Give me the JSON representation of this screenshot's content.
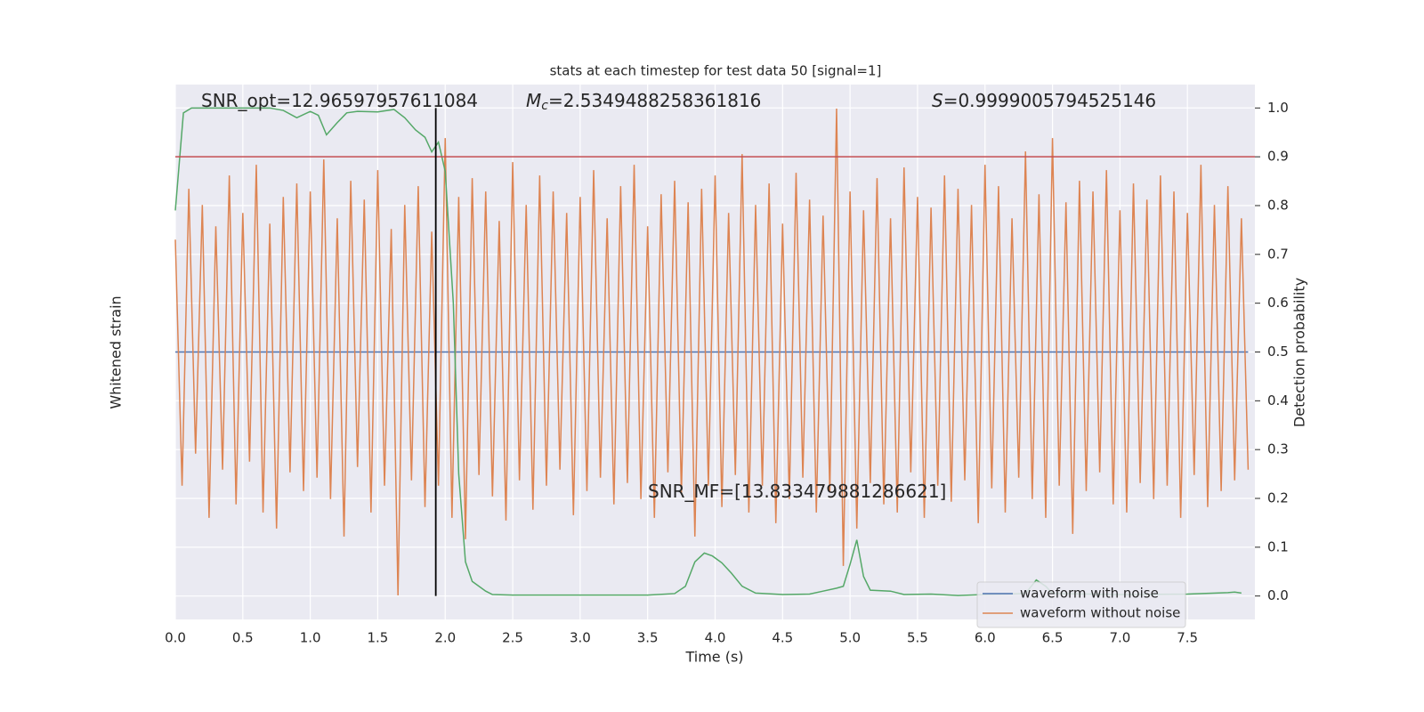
{
  "chart_data": {
    "type": "line",
    "title": "stats at each timestep for test data 50 [signal=1]",
    "xlabel": "Time (s)",
    "ylabel": "Whitened strain",
    "y2label": "Detection probability",
    "xlim": [
      0,
      8
    ],
    "ylim": [
      -1,
      1
    ],
    "y2lim": [
      -0.048,
      1.048
    ],
    "xticks": [
      {
        "value": 0,
        "label": "0.0"
      },
      {
        "value": 0.5,
        "label": "0.5"
      },
      {
        "value": 1,
        "label": "1.0"
      },
      {
        "value": 1.5,
        "label": "1.5"
      },
      {
        "value": 2,
        "label": "2.0"
      },
      {
        "value": 2.5,
        "label": "2.5"
      },
      {
        "value": 3,
        "label": "3.0"
      },
      {
        "value": 3.5,
        "label": "3.5"
      },
      {
        "value": 4,
        "label": "4.0"
      },
      {
        "value": 4.5,
        "label": "4.5"
      },
      {
        "value": 5,
        "label": "5.0"
      },
      {
        "value": 5.5,
        "label": "5.5"
      },
      {
        "value": 6,
        "label": "6.0"
      },
      {
        "value": 6.5,
        "label": "6.5"
      },
      {
        "value": 7,
        "label": "7.0"
      },
      {
        "value": 7.5,
        "label": "7.5"
      }
    ],
    "y2ticks": [
      {
        "value": 0,
        "label": "0.0"
      },
      {
        "value": 0.1,
        "label": "0.1"
      },
      {
        "value": 0.2,
        "label": "0.2"
      },
      {
        "value": 0.3,
        "label": "0.3"
      },
      {
        "value": 0.4,
        "label": "0.4"
      },
      {
        "value": 0.5,
        "label": "0.5"
      },
      {
        "value": 0.6,
        "label": "0.6"
      },
      {
        "value": 0.7,
        "label": "0.7"
      },
      {
        "value": 0.8,
        "label": "0.8"
      },
      {
        "value": 0.9,
        "label": "0.9"
      },
      {
        "value": 1,
        "label": "1.0"
      }
    ],
    "grid": true,
    "legend": "lower right",
    "series": [
      {
        "name": "waveform with noise",
        "color": "#4c72b0",
        "x": [
          0,
          7.95
        ],
        "values": [
          0,
          0
        ]
      },
      {
        "name": "waveform without noise",
        "color": "#dd8452",
        "x": [
          0,
          0.05,
          0.1,
          0.15,
          0.2,
          0.25,
          0.3,
          0.35,
          0.4,
          0.45,
          0.5,
          0.55,
          0.6,
          0.65,
          0.7,
          0.75,
          0.8,
          0.85,
          0.9,
          0.95,
          1,
          1.05,
          1.1,
          1.15,
          1.2,
          1.25,
          1.3,
          1.35,
          1.4,
          1.45,
          1.5,
          1.55,
          1.6,
          1.65,
          1.7,
          1.75,
          1.8,
          1.85,
          1.9,
          1.95,
          2,
          2.05,
          2.1,
          2.15,
          2.2,
          2.25,
          2.3,
          2.35,
          2.4,
          2.45,
          2.5,
          2.55,
          2.6,
          2.65,
          2.7,
          2.75,
          2.8,
          2.85,
          2.9,
          2.95,
          3,
          3.05,
          3.1,
          3.15,
          3.2,
          3.25,
          3.3,
          3.35,
          3.4,
          3.45,
          3.5,
          3.55,
          3.6,
          3.65,
          3.7,
          3.75,
          3.8,
          3.85,
          3.9,
          3.95,
          4,
          4.05,
          4.1,
          4.15,
          4.2,
          4.25,
          4.3,
          4.35,
          4.4,
          4.45,
          4.5,
          4.55,
          4.6,
          4.65,
          4.7,
          4.75,
          4.8,
          4.85,
          4.9,
          4.95,
          5,
          5.05,
          5.1,
          5.15,
          5.2,
          5.25,
          5.3,
          5.35,
          5.4,
          5.45,
          5.5,
          5.55,
          5.6,
          5.65,
          5.7,
          5.75,
          5.8,
          5.85,
          5.9,
          5.95,
          6,
          6.05,
          6.1,
          6.15,
          6.2,
          6.25,
          6.3,
          6.35,
          6.4,
          6.45,
          6.5,
          6.55,
          6.6,
          6.65,
          6.7,
          6.75,
          6.8,
          6.85,
          6.9,
          6.95,
          7,
          7.05,
          7.1,
          7.15,
          7.2,
          7.25,
          7.3,
          7.35,
          7.4,
          7.45,
          7.5,
          7.55,
          7.6,
          7.65,
          7.7,
          7.75,
          7.8,
          7.85,
          7.9,
          7.95
        ],
        "values": [
          0.42,
          -0.5,
          0.61,
          -0.38,
          0.55,
          -0.62,
          0.47,
          -0.44,
          0.66,
          -0.57,
          0.52,
          -0.41,
          0.7,
          -0.6,
          0.48,
          -0.66,
          0.58,
          -0.45,
          0.63,
          -0.52,
          0.6,
          -0.47,
          0.72,
          -0.55,
          0.5,
          -0.69,
          0.64,
          -0.43,
          0.57,
          -0.6,
          0.68,
          -0.5,
          0.46,
          -0.91,
          0.55,
          -0.48,
          0.62,
          -0.58,
          0.45,
          -0.5,
          0.8,
          -0.62,
          0.58,
          -0.7,
          0.65,
          -0.46,
          0.6,
          -0.54,
          0.49,
          -0.63,
          0.71,
          -0.48,
          0.55,
          -0.59,
          0.66,
          -0.5,
          0.6,
          -0.44,
          0.52,
          -0.61,
          0.58,
          -0.52,
          0.68,
          -0.47,
          0.5,
          -0.57,
          0.62,
          -0.49,
          0.7,
          -0.55,
          0.47,
          -0.62,
          0.59,
          -0.45,
          0.64,
          -0.53,
          0.56,
          -0.69,
          0.61,
          -0.5,
          0.66,
          -0.58,
          0.52,
          -0.46,
          0.74,
          -0.6,
          0.55,
          -0.5,
          0.63,
          -0.64,
          0.48,
          -0.55,
          0.67,
          -0.47,
          0.57,
          -0.6,
          0.51,
          -0.52,
          0.91,
          -0.8,
          0.6,
          -0.66,
          0.53,
          -0.49,
          0.65,
          -0.57,
          0.5,
          -0.6,
          0.69,
          -0.45,
          0.58,
          -0.62,
          0.54,
          -0.5,
          0.66,
          -0.56,
          0.61,
          -0.48,
          0.55,
          -0.64,
          0.7,
          -0.51,
          0.62,
          -0.6,
          0.5,
          -0.47,
          0.75,
          -0.55,
          0.59,
          -0.62,
          0.8,
          -0.5,
          0.56,
          -0.68,
          0.64,
          -0.52,
          0.6,
          -0.45,
          0.68,
          -0.57,
          0.53,
          -0.6,
          0.63,
          -0.49,
          0.57,
          -0.55,
          0.66,
          -0.5,
          0.6,
          -0.62,
          0.52,
          -0.46,
          0.7,
          -0.58,
          0.55,
          -0.52,
          0.62,
          -0.48,
          0.5,
          -0.44
        ]
      },
      {
        "color": "#55a868",
        "axis": "y2",
        "x": [
          0,
          0.06,
          0.12,
          0.3,
          0.5,
          0.7,
          0.8,
          0.9,
          1.0,
          1.06,
          1.12,
          1.2,
          1.27,
          1.35,
          1.5,
          1.62,
          1.7,
          1.78,
          1.85,
          1.9,
          1.95,
          2.0,
          2.06,
          2.1,
          2.15,
          2.2,
          2.3,
          2.35,
          2.5,
          3.0,
          3.5,
          3.7,
          3.78,
          3.85,
          3.92,
          3.98,
          4.05,
          4.12,
          4.2,
          4.3,
          4.5,
          4.7,
          4.8,
          4.9,
          4.95,
          5.0,
          5.05,
          5.1,
          5.15,
          5.3,
          5.4,
          5.6,
          5.8,
          6.0,
          6.3,
          6.38,
          6.45,
          6.5,
          7.0,
          7.5,
          7.8,
          7.85,
          7.9
        ],
        "values": [
          0.79,
          0.99,
          1.0,
          1.0,
          1.0,
          1.0,
          0.995,
          0.98,
          0.993,
          0.985,
          0.945,
          0.97,
          0.99,
          0.993,
          0.992,
          0.997,
          0.98,
          0.955,
          0.94,
          0.91,
          0.93,
          0.87,
          0.6,
          0.25,
          0.07,
          0.03,
          0.01,
          0.003,
          0.002,
          0.002,
          0.002,
          0.005,
          0.02,
          0.07,
          0.088,
          0.082,
          0.068,
          0.047,
          0.02,
          0.006,
          0.003,
          0.004,
          0.01,
          0.016,
          0.02,
          0.065,
          0.115,
          0.04,
          0.012,
          0.01,
          0.003,
          0.004,
          0.001,
          0.003,
          0.005,
          0.033,
          0.02,
          0.005,
          0.003,
          0.004,
          0.007,
          0.008,
          0.006
        ]
      }
    ],
    "hline": {
      "y": 0.9,
      "color": "#c44e52",
      "axis": "y2"
    },
    "vline": {
      "x": 1.93,
      "ymin": 0,
      "ymax": 1,
      "color": "#000000",
      "axis": "y2"
    },
    "annotations": [
      {
        "text": "SNR_opt=12.96597957611084"
      },
      {
        "symbol": "M",
        "subscript": "c",
        "text": "=2.5349488258361816"
      },
      {
        "symbol": "S",
        "text": "=0.9999005794525146"
      },
      {
        "text": "SNR_MF=[13.833479881286621]"
      }
    ]
  }
}
